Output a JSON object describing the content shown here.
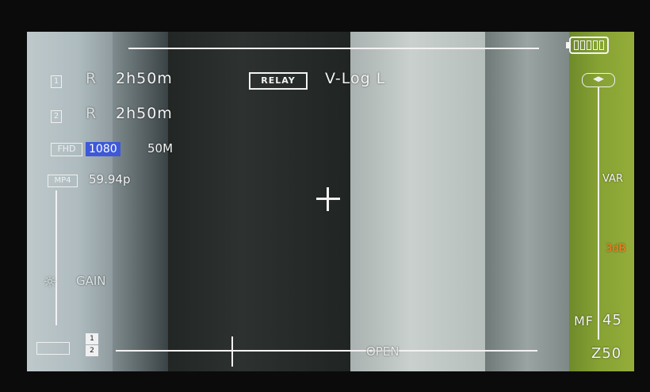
{
  "slots": [
    {
      "number": "1",
      "mode": "R",
      "time": "2h50m"
    },
    {
      "number": "2",
      "mode": "R",
      "time": "2h50m"
    }
  ],
  "record_mode": "RELAY",
  "gamma": "V-Log L",
  "format": {
    "quality": "FHD",
    "resolution": "1080",
    "bitrate": "50M"
  },
  "file": {
    "container": "MP4",
    "frame_rate": "59.94p"
  },
  "gain": {
    "label": "GAIN",
    "mode": "VAR",
    "value": "3dB"
  },
  "white_balance_icon": "wb-icon",
  "crosshair_icon": "crosshair-icon",
  "battery_icon": "battery-icon",
  "bottom": {
    "iris_label": "OPEN",
    "audio_left": "1",
    "audio_right": "2"
  },
  "focus": {
    "mode": "MF",
    "value": "45"
  },
  "zoom": {
    "value": "Z50"
  },
  "colors": {
    "highlight": "#3d58d8",
    "gain_value": "#ff7f1e"
  }
}
